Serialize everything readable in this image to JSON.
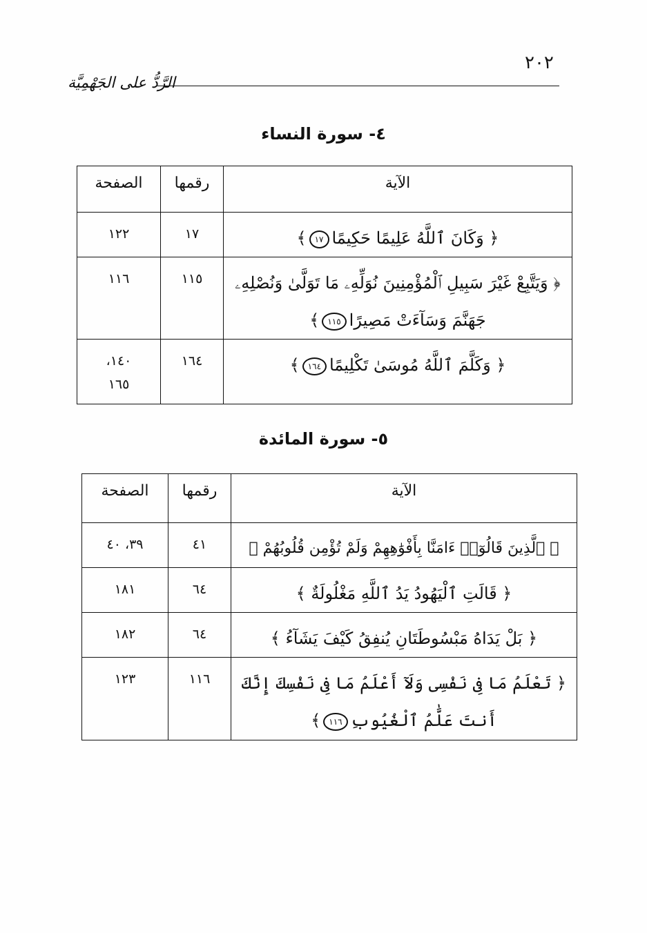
{
  "page_number": "٢٠٢",
  "running_head": "الرَّدُّ على الجَهْمِيَّة",
  "headers": {
    "verse": "الآية",
    "number": "رقمها",
    "page": "الصفحة"
  },
  "sections": [
    {
      "title": "٤- سورة النساء",
      "rows": [
        {
          "verse": "﴿ وَكَانَ ٱللَّهُ عَلِيمًا حَكِيمًا",
          "ayah": "١٧",
          "close": "﴾",
          "number": "١٧",
          "page": "١٢٢"
        },
        {
          "verse": "﴿ وَيَتَّبِعْ غَيْرَ سَبِيلِ ٱلْمُؤْمِنِينَ نُوَلِّهِۦ مَا تَوَلَّىٰ وَنُصْلِهِۦ جَهَنَّمَ وَسَآءَتْ مَصِيرًا",
          "ayah": "١١٥",
          "close": "﴾",
          "number": "١١٥",
          "page": "١١٦"
        },
        {
          "verse": "﴿ وَكَلَّمَ ٱللَّهُ مُوسَىٰ تَكْلِيمًا",
          "ayah": "١٦٤",
          "close": "﴾",
          "number": "١٦٤",
          "page": "١٤٠، ١٦٥"
        }
      ]
    },
    {
      "title": "٥- سورة المائدة",
      "rows": [
        {
          "verse": "﴿ ٱلَّذِينَ قَالُوٓا۟ ءَامَنَّا بِأَفْوَٰهِهِمْ وَلَمْ تُؤْمِن قُلُوبُهُمْ",
          "ayah": "",
          "close": "﴾",
          "number": "٤١",
          "page": "٣٩، ٤٠"
        },
        {
          "verse": "﴿ قَالَتِ ٱلْيَهُودُ يَدُ ٱللَّهِ مَغْلُولَةٌ",
          "ayah": "",
          "close": "﴾",
          "number": "٦٤",
          "page": "١٨١"
        },
        {
          "verse": "﴿ بَلْ يَدَاهُ مَبْسُوطَتَانِ يُنفِقُ كَيْفَ يَشَآءُ",
          "ayah": "",
          "close": "﴾",
          "number": "٦٤",
          "page": "١٨٢"
        },
        {
          "verse": "﴿ تَعْلَمُ مَا فِى نَفْسِى وَلَآ أَعْلَمُ مَا فِى نَفْسِكَ إِنَّكَ أَنتَ عَلَّٰمُ ٱلْغُيُوبِ",
          "ayah": "١١٦",
          "close": "﴾",
          "number": "١١٦",
          "page": "١٢٣"
        }
      ]
    }
  ]
}
